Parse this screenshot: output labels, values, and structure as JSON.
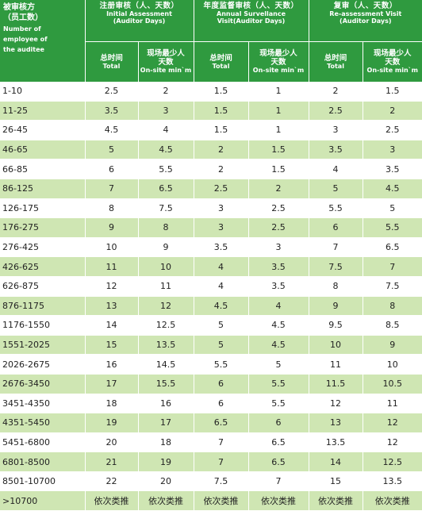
{
  "header": {
    "col0": {
      "zh_line1": "被审核方",
      "zh_line2": "（员工数）",
      "en_line1": "Number of",
      "en_line2": "employee of",
      "en_line3": "the auditee"
    },
    "group1": {
      "zh": "注册审核（人、天数）",
      "en_line1": "Initial Assessment",
      "en_line2": "(Auditor Days)"
    },
    "group2": {
      "zh": "年度监督审核（人、天数）",
      "en_line1": "Annual Survellance",
      "en_line2": "Visit(Auditor Days)"
    },
    "group3": {
      "zh": "复审（人、天数）",
      "en_line1": "Re-assessment Visit",
      "en_line2": "(Auditor Days)"
    },
    "sub_total": {
      "zh": "总时间",
      "en": "Total"
    },
    "sub_onsite": {
      "zh_line1": "现场最少人",
      "zh_line2": "天数",
      "en": "On-site min`m"
    }
  },
  "rows": [
    {
      "range": "1-10",
      "v": [
        "2.5",
        "2",
        "1.5",
        "1",
        "2",
        "1.5"
      ]
    },
    {
      "range": "11-25",
      "v": [
        "3.5",
        "3",
        "1.5",
        "1",
        "2.5",
        "2"
      ]
    },
    {
      "range": "26-45",
      "v": [
        "4.5",
        "4",
        "1.5",
        "1",
        "3",
        "2.5"
      ]
    },
    {
      "range": "46-65",
      "v": [
        "5",
        "4.5",
        "2",
        "1.5",
        "3.5",
        "3"
      ]
    },
    {
      "range": "66-85",
      "v": [
        "6",
        "5.5",
        "2",
        "1.5",
        "4",
        "3.5"
      ]
    },
    {
      "range": "86-125",
      "v": [
        "7",
        "6.5",
        "2.5",
        "2",
        "5",
        "4.5"
      ]
    },
    {
      "range": "126-175",
      "v": [
        "8",
        "7.5",
        "3",
        "2.5",
        "5.5",
        "5"
      ]
    },
    {
      "range": "176-275",
      "v": [
        "9",
        "8",
        "3",
        "2.5",
        "6",
        "5.5"
      ]
    },
    {
      "range": "276-425",
      "v": [
        "10",
        "9",
        "3.5",
        "3",
        "7",
        "6.5"
      ]
    },
    {
      "range": "426-625",
      "v": [
        "11",
        "10",
        "4",
        "3.5",
        "7.5",
        "7"
      ]
    },
    {
      "range": "626-875",
      "v": [
        "12",
        "11",
        "4",
        "3.5",
        "8",
        "7.5"
      ]
    },
    {
      "range": "876-1175",
      "v": [
        "13",
        "12",
        "4.5",
        "4",
        "9",
        "8"
      ]
    },
    {
      "range": "1176-1550",
      "v": [
        "14",
        "12.5",
        "5",
        "4.5",
        "9.5",
        "8.5"
      ]
    },
    {
      "range": "1551-2025",
      "v": [
        "15",
        "13.5",
        "5",
        "4.5",
        "10",
        "9"
      ]
    },
    {
      "range": "2026-2675",
      "v": [
        "16",
        "14.5",
        "5.5",
        "5",
        "11",
        "10"
      ]
    },
    {
      "range": "2676-3450",
      "v": [
        "17",
        "15.5",
        "6",
        "5.5",
        "11.5",
        "10.5"
      ]
    },
    {
      "range": "3451-4350",
      "v": [
        "18",
        "16",
        "6",
        "5.5",
        "12",
        "11"
      ]
    },
    {
      "range": "4351-5450",
      "v": [
        "19",
        "17",
        "6.5",
        "6",
        "13",
        "12"
      ]
    },
    {
      "range": "5451-6800",
      "v": [
        "20",
        "18",
        "7",
        "6.5",
        "13.5",
        "12"
      ]
    },
    {
      "range": "6801-8500",
      "v": [
        "21",
        "19",
        "7",
        "6.5",
        "14",
        "12.5"
      ]
    },
    {
      "range": "8501-10700",
      "v": [
        "22",
        "20",
        "7.5",
        "7",
        "15",
        "13.5"
      ]
    },
    {
      "range": ">10700",
      "v": [
        "依次类推",
        "依次类推",
        "依次类推",
        "依次类推",
        "依次类推",
        "依次类推"
      ]
    }
  ]
}
